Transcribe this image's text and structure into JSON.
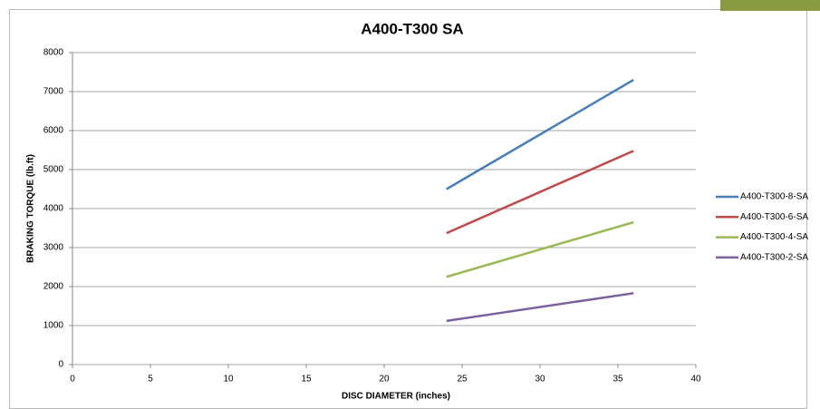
{
  "chart_data": {
    "type": "line",
    "title": "A400-T300 SA",
    "x_label": "DISC DIAMETER (inches)",
    "y_label": "BRAKING TORQUE (lb.ft)",
    "x": [
      24,
      36
    ],
    "series": [
      {
        "name": "A400-T300-8-SA",
        "color": "#4a7ebb",
        "values": [
          4500,
          7300
        ]
      },
      {
        "name": "A400-T300-6-SA",
        "color": "#be4b48",
        "values": [
          3370,
          5480
        ]
      },
      {
        "name": "A400-T300-4-SA",
        "color": "#98b954",
        "values": [
          2250,
          3650
        ]
      },
      {
        "name": "A400-T300-2-SA",
        "color": "#7d60a0",
        "values": [
          1120,
          1830
        ]
      }
    ],
    "xlim": [
      0,
      40
    ],
    "xticks": [
      0,
      5,
      10,
      15,
      20,
      25,
      30,
      35,
      40
    ],
    "ylim": [
      0,
      8000
    ],
    "yticks": [
      0,
      1000,
      2000,
      3000,
      4000,
      5000,
      6000,
      7000,
      8000
    ],
    "grid": true,
    "legend": "right"
  }
}
